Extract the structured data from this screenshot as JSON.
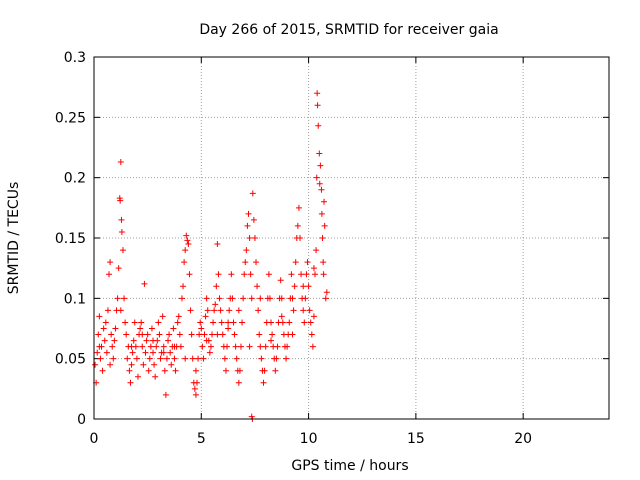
{
  "chart_data": {
    "type": "scatter",
    "title": "Day 266 of 2015, SRMTID for receiver gaia",
    "xlabel": "GPS time / hours",
    "ylabel": "SRMTID / TECUs",
    "xlim": [
      0,
      24
    ],
    "ylim": [
      0,
      0.3
    ],
    "x_ticks": [
      0,
      5,
      10,
      15,
      20
    ],
    "x_tick_labels": [
      "0",
      "5",
      "10",
      "15",
      "20"
    ],
    "y_ticks": [
      0,
      0.05,
      0.1,
      0.15,
      0.2,
      0.25,
      0.3
    ],
    "y_tick_labels": [
      "0",
      "0.05",
      "0.1",
      "0.15",
      "0.2",
      "0.25",
      "0.3"
    ],
    "grid": true,
    "marker": "plus",
    "color": "#ff0000",
    "points": [
      [
        0.05,
        0.045
      ],
      [
        0.1,
        0.03
      ],
      [
        0.15,
        0.055
      ],
      [
        0.2,
        0.07
      ],
      [
        0.25,
        0.085
      ],
      [
        0.3,
        0.05
      ],
      [
        0.35,
        0.06
      ],
      [
        0.4,
        0.04
      ],
      [
        0.45,
        0.075
      ],
      [
        0.5,
        0.065
      ],
      [
        0.55,
        0.08
      ],
      [
        0.6,
        0.055
      ],
      [
        0.65,
        0.09
      ],
      [
        0.7,
        0.12
      ],
      [
        0.75,
        0.13
      ],
      [
        0.8,
        0.07
      ],
      [
        0.85,
        0.06
      ],
      [
        0.9,
        0.05
      ],
      [
        0.95,
        0.065
      ],
      [
        1.0,
        0.075
      ],
      [
        1.05,
        0.09
      ],
      [
        1.1,
        0.1
      ],
      [
        1.15,
        0.125
      ],
      [
        1.2,
        0.183
      ],
      [
        1.22,
        0.181
      ],
      [
        1.25,
        0.213
      ],
      [
        1.28,
        0.165
      ],
      [
        1.3,
        0.155
      ],
      [
        1.35,
        0.14
      ],
      [
        1.4,
        0.1
      ],
      [
        1.45,
        0.08
      ],
      [
        1.5,
        0.07
      ],
      [
        1.55,
        0.05
      ],
      [
        1.6,
        0.06
      ],
      [
        1.65,
        0.04
      ],
      [
        1.7,
        0.03
      ],
      [
        1.75,
        0.045
      ],
      [
        1.8,
        0.055
      ],
      [
        1.85,
        0.065
      ],
      [
        1.9,
        0.08
      ],
      [
        1.95,
        0.06
      ],
      [
        2.0,
        0.05
      ],
      [
        2.05,
        0.035
      ],
      [
        2.1,
        0.07
      ],
      [
        2.15,
        0.075
      ],
      [
        2.2,
        0.08
      ],
      [
        2.25,
        0.06
      ],
      [
        2.3,
        0.045
      ],
      [
        2.35,
        0.112
      ],
      [
        2.4,
        0.055
      ],
      [
        2.45,
        0.065
      ],
      [
        2.5,
        0.07
      ],
      [
        2.55,
        0.04
      ],
      [
        2.6,
        0.05
      ],
      [
        2.65,
        0.06
      ],
      [
        2.7,
        0.075
      ],
      [
        2.75,
        0.055
      ],
      [
        2.8,
        0.045
      ],
      [
        2.85,
        0.035
      ],
      [
        2.9,
        0.06
      ],
      [
        2.95,
        0.065
      ],
      [
        3.0,
        0.08
      ],
      [
        3.05,
        0.07
      ],
      [
        3.1,
        0.05
      ],
      [
        3.15,
        0.055
      ],
      [
        3.2,
        0.085
      ],
      [
        3.25,
        0.06
      ],
      [
        3.3,
        0.04
      ],
      [
        3.35,
        0.02
      ],
      [
        3.4,
        0.05
      ],
      [
        3.45,
        0.065
      ],
      [
        3.5,
        0.07
      ],
      [
        3.55,
        0.055
      ],
      [
        3.6,
        0.045
      ],
      [
        3.65,
        0.06
      ],
      [
        3.7,
        0.075
      ],
      [
        3.75,
        0.05
      ],
      [
        3.8,
        0.04
      ],
      [
        3.85,
        0.06
      ],
      [
        3.9,
        0.08
      ],
      [
        3.95,
        0.085
      ],
      [
        4.0,
        0.07
      ],
      [
        4.05,
        0.06
      ],
      [
        4.1,
        0.1
      ],
      [
        4.15,
        0.11
      ],
      [
        4.2,
        0.13
      ],
      [
        4.25,
        0.14
      ],
      [
        4.3,
        0.152
      ],
      [
        4.35,
        0.148
      ],
      [
        4.4,
        0.145
      ],
      [
        4.45,
        0.12
      ],
      [
        4.5,
        0.09
      ],
      [
        4.55,
        0.07
      ],
      [
        4.6,
        0.05
      ],
      [
        4.65,
        0.03
      ],
      [
        4.7,
        0.025
      ],
      [
        4.75,
        0.02
      ],
      [
        4.8,
        0.03
      ],
      [
        4.85,
        0.05
      ],
      [
        4.9,
        0.07
      ],
      [
        4.95,
        0.08
      ],
      [
        5.0,
        0.075
      ],
      [
        5.05,
        0.06
      ],
      [
        5.1,
        0.05
      ],
      [
        5.15,
        0.07
      ],
      [
        5.2,
        0.085
      ],
      [
        5.25,
        0.1
      ],
      [
        5.3,
        0.09
      ],
      [
        5.35,
        0.065
      ],
      [
        5.4,
        0.055
      ],
      [
        5.45,
        0.06
      ],
      [
        5.5,
        0.07
      ],
      [
        5.55,
        0.08
      ],
      [
        5.6,
        0.09
      ],
      [
        5.65,
        0.095
      ],
      [
        5.7,
        0.11
      ],
      [
        5.75,
        0.145
      ],
      [
        5.8,
        0.12
      ],
      [
        5.85,
        0.1
      ],
      [
        5.9,
        0.09
      ],
      [
        5.95,
        0.08
      ],
      [
        6.0,
        0.07
      ],
      [
        6.05,
        0.06
      ],
      [
        6.1,
        0.05
      ],
      [
        6.15,
        0.04
      ],
      [
        6.2,
        0.06
      ],
      [
        6.25,
        0.075
      ],
      [
        6.3,
        0.09
      ],
      [
        6.35,
        0.1
      ],
      [
        6.4,
        0.12
      ],
      [
        6.45,
        0.1
      ],
      [
        6.5,
        0.08
      ],
      [
        6.55,
        0.07
      ],
      [
        6.6,
        0.06
      ],
      [
        6.65,
        0.05
      ],
      [
        6.7,
        0.04
      ],
      [
        6.75,
        0.03
      ],
      [
        6.8,
        0.04
      ],
      [
        6.85,
        0.06
      ],
      [
        6.9,
        0.08
      ],
      [
        6.95,
        0.1
      ],
      [
        7.0,
        0.12
      ],
      [
        7.05,
        0.13
      ],
      [
        7.1,
        0.14
      ],
      [
        7.15,
        0.16
      ],
      [
        7.2,
        0.17
      ],
      [
        7.25,
        0.15
      ],
      [
        7.3,
        0.12
      ],
      [
        7.35,
        0.1
      ],
      [
        7.4,
        0.187
      ],
      [
        7.45,
        0.165
      ],
      [
        7.5,
        0.15
      ],
      [
        7.55,
        0.13
      ],
      [
        7.6,
        0.11
      ],
      [
        7.65,
        0.09
      ],
      [
        7.7,
        0.07
      ],
      [
        7.75,
        0.06
      ],
      [
        7.8,
        0.05
      ],
      [
        7.85,
        0.04
      ],
      [
        7.9,
        0.03
      ],
      [
        7.95,
        0.04
      ],
      [
        8.0,
        0.06
      ],
      [
        8.05,
        0.08
      ],
      [
        8.1,
        0.1
      ],
      [
        8.15,
        0.12
      ],
      [
        8.2,
        0.1
      ],
      [
        8.25,
        0.08
      ],
      [
        8.3,
        0.07
      ],
      [
        8.35,
        0.06
      ],
      [
        8.4,
        0.05
      ],
      [
        8.45,
        0.04
      ],
      [
        8.5,
        0.05
      ],
      [
        8.55,
        0.06
      ],
      [
        8.6,
        0.08
      ],
      [
        8.65,
        0.1
      ],
      [
        8.7,
        0.115
      ],
      [
        8.75,
        0.1
      ],
      [
        8.8,
        0.08
      ],
      [
        8.85,
        0.07
      ],
      [
        8.9,
        0.06
      ],
      [
        8.95,
        0.05
      ],
      [
        9.0,
        0.06
      ],
      [
        9.05,
        0.07
      ],
      [
        9.1,
        0.08
      ],
      [
        9.15,
        0.1
      ],
      [
        9.2,
        0.12
      ],
      [
        9.25,
        0.1
      ],
      [
        9.3,
        0.09
      ],
      [
        9.35,
        0.11
      ],
      [
        9.4,
        0.13
      ],
      [
        9.45,
        0.15
      ],
      [
        9.5,
        0.16
      ],
      [
        9.55,
        0.175
      ],
      [
        9.6,
        0.15
      ],
      [
        9.65,
        0.12
      ],
      [
        9.7,
        0.1
      ],
      [
        9.75,
        0.09
      ],
      [
        9.8,
        0.08
      ],
      [
        9.85,
        0.1
      ],
      [
        9.9,
        0.12
      ],
      [
        9.95,
        0.13
      ],
      [
        10.0,
        0.11
      ],
      [
        10.05,
        0.09
      ],
      [
        10.1,
        0.08
      ],
      [
        10.15,
        0.07
      ],
      [
        10.2,
        0.06
      ],
      [
        10.25,
        0.085
      ],
      [
        10.3,
        0.12
      ],
      [
        10.35,
        0.14
      ],
      [
        10.38,
        0.2
      ],
      [
        10.4,
        0.27
      ],
      [
        10.42,
        0.26
      ],
      [
        10.45,
        0.243
      ],
      [
        10.5,
        0.22
      ],
      [
        10.52,
        0.195
      ],
      [
        10.55,
        0.21
      ],
      [
        10.6,
        0.19
      ],
      [
        10.62,
        0.17
      ],
      [
        10.65,
        0.15
      ],
      [
        10.68,
        0.13
      ],
      [
        10.7,
        0.12
      ],
      [
        10.72,
        0.18
      ],
      [
        10.75,
        0.16
      ],
      [
        10.8,
        0.1
      ],
      [
        10.85,
        0.105
      ],
      [
        0.25,
        0.06
      ],
      [
        0.75,
        0.045
      ],
      [
        1.25,
        0.09
      ],
      [
        1.75,
        0.06
      ],
      [
        2.25,
        0.07
      ],
      [
        2.75,
        0.065
      ],
      [
        3.25,
        0.055
      ],
      [
        3.75,
        0.06
      ],
      [
        4.25,
        0.05
      ],
      [
        4.75,
        0.04
      ],
      [
        5.25,
        0.065
      ],
      [
        5.75,
        0.07
      ],
      [
        6.25,
        0.08
      ],
      [
        6.75,
        0.09
      ],
      [
        7.25,
        0.06
      ],
      [
        7.75,
        0.1
      ],
      [
        8.25,
        0.065
      ],
      [
        8.75,
        0.085
      ],
      [
        9.25,
        0.07
      ],
      [
        9.75,
        0.11
      ],
      [
        10.25,
        0.125
      ],
      [
        7.35,
        0.002
      ],
      [
        7.38,
        0.0
      ]
    ]
  }
}
